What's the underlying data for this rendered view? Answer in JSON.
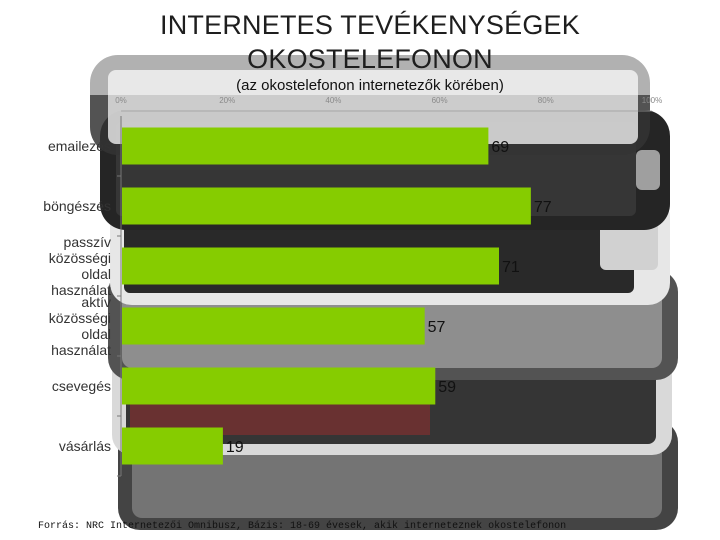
{
  "title": "INTERNETES TEVÉKENYSÉGEK OKOSTELEFONON",
  "subtitle": "(az okostelefonon internetezők körében)",
  "source": "Forrás: NRC Internetezői Omnibusz, Bázis: 18-69 évesek, akik interneteznek okostelefonon",
  "colors": {
    "bar": "#86cc00",
    "background_phone_dark": "#2a2a2a"
  },
  "chart_data": {
    "type": "bar",
    "orientation": "horizontal",
    "categories": [
      "emailezés",
      "böngészés",
      "passzív közösségi oldal használat",
      "aktív közösségi oldal használat",
      "csevegés",
      "vásárlás"
    ],
    "values": [
      69,
      77,
      71,
      57,
      59,
      19
    ],
    "data_labels": [
      "69",
      "77",
      "71",
      "57",
      "59",
      "19"
    ],
    "xlim": [
      0,
      100
    ],
    "xticks": [
      0,
      20,
      40,
      60,
      80,
      100
    ],
    "xtick_labels": [
      "0%",
      "20%",
      "40%",
      "60%",
      "80%",
      "100%"
    ],
    "title": "INTERNETES TEVÉKENYSÉGEK OKOSTELEFONON",
    "subtitle": "(az okostelefonon internetezők körében)",
    "xlabel": "",
    "ylabel": "",
    "grid": false,
    "legend": "none"
  }
}
